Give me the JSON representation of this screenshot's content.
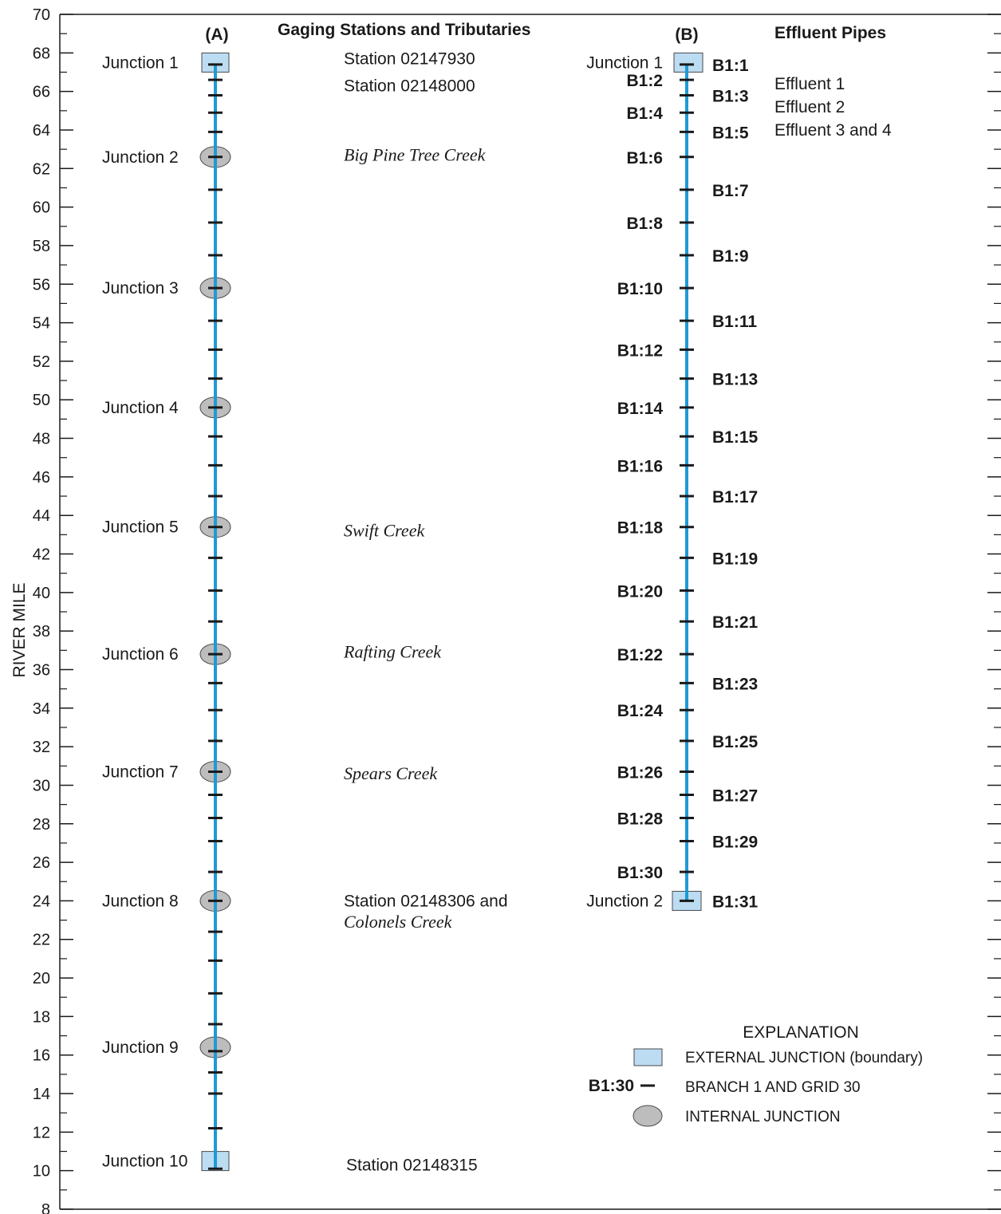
{
  "axis": {
    "ylabel": "RIVER MILE",
    "ylim": [
      8,
      70
    ],
    "ticks": [
      70,
      68,
      66,
      64,
      62,
      60,
      58,
      56,
      54,
      52,
      50,
      48,
      46,
      44,
      42,
      40,
      38,
      36,
      34,
      32,
      30,
      28,
      26,
      24,
      22,
      20,
      18,
      16,
      14,
      12,
      10,
      8
    ]
  },
  "panel_a": {
    "label": "(A)",
    "header": "Gaging Stations and Tributaries",
    "junctions": [
      {
        "label": "Junction 1",
        "mile": 67.5,
        "type": "external"
      },
      {
        "label": "Junction 2",
        "mile": 62.6,
        "type": "internal"
      },
      {
        "label": "Junction 3",
        "mile": 55.8,
        "type": "internal"
      },
      {
        "label": "Junction 4",
        "mile": 49.6,
        "type": "internal"
      },
      {
        "label": "Junction 5",
        "mile": 43.4,
        "type": "internal"
      },
      {
        "label": "Junction 6",
        "mile": 36.8,
        "type": "internal"
      },
      {
        "label": "Junction 7",
        "mile": 30.7,
        "type": "internal"
      },
      {
        "label": "Junction 8",
        "mile": 24.0,
        "type": "internal"
      },
      {
        "label": "Junction 9",
        "mile": 16.4,
        "type": "internal"
      },
      {
        "label": "Junction 10",
        "mile": 10.5,
        "type": "external"
      }
    ],
    "grid_miles": [
      67.4,
      66.6,
      65.8,
      64.9,
      63.9,
      62.6,
      60.9,
      59.2,
      57.5,
      55.8,
      54.1,
      52.6,
      51.1,
      49.6,
      48.1,
      46.6,
      45.0,
      43.4,
      41.8,
      40.1,
      38.5,
      36.8,
      35.3,
      33.9,
      32.3,
      30.7,
      29.5,
      28.3,
      27.1,
      25.5,
      24.0,
      22.4,
      20.9,
      19.2,
      17.6,
      16.2,
      15.1,
      14.0,
      12.2,
      10.1
    ],
    "annotations": [
      {
        "text": "Station 02147930",
        "mile": 67.7,
        "italic": false
      },
      {
        "text": "Station 02148000",
        "mile": 66.3,
        "italic": false
      },
      {
        "text": "Big Pine Tree Creek",
        "mile": 62.7,
        "italic": true
      },
      {
        "text": "Swift Creek",
        "mile": 43.2,
        "italic": true
      },
      {
        "text": "Rafting Creek",
        "mile": 36.9,
        "italic": true
      },
      {
        "text": "Spears Creek",
        "mile": 30.6,
        "italic": true
      },
      {
        "text": "Station 02148306 and",
        "mile": 24.0,
        "italic": false
      },
      {
        "text": "Colonels Creek",
        "mile": 22.9,
        "italic": true
      },
      {
        "text": "Station 02148315",
        "mile": 10.3,
        "italic": false
      }
    ]
  },
  "panel_b": {
    "label": "(B)",
    "header": "Effluent Pipes",
    "junctions": [
      {
        "label": "Junction 1",
        "mile": 67.5,
        "type": "external"
      },
      {
        "label": "Junction 2",
        "mile": 24.0,
        "type": "external"
      }
    ],
    "grids": [
      {
        "label": "B1:1",
        "mile": 67.4,
        "side": "right"
      },
      {
        "label": "B1:2",
        "mile": 66.6,
        "side": "left"
      },
      {
        "label": "B1:3",
        "mile": 65.8,
        "side": "right"
      },
      {
        "label": "B1:4",
        "mile": 64.9,
        "side": "left"
      },
      {
        "label": "B1:5",
        "mile": 63.9,
        "side": "right"
      },
      {
        "label": "B1:6",
        "mile": 62.6,
        "side": "left"
      },
      {
        "label": "B1:7",
        "mile": 60.9,
        "side": "right"
      },
      {
        "label": "B1:8",
        "mile": 59.2,
        "side": "left"
      },
      {
        "label": "B1:9",
        "mile": 57.5,
        "side": "right"
      },
      {
        "label": "B1:10",
        "mile": 55.8,
        "side": "left"
      },
      {
        "label": "B1:11",
        "mile": 54.1,
        "side": "right"
      },
      {
        "label": "B1:12",
        "mile": 52.6,
        "side": "left"
      },
      {
        "label": "B1:13",
        "mile": 51.1,
        "side": "right"
      },
      {
        "label": "B1:14",
        "mile": 49.6,
        "side": "left"
      },
      {
        "label": "B1:15",
        "mile": 48.1,
        "side": "right"
      },
      {
        "label": "B1:16",
        "mile": 46.6,
        "side": "left"
      },
      {
        "label": "B1:17",
        "mile": 45.0,
        "side": "right"
      },
      {
        "label": "B1:18",
        "mile": 43.4,
        "side": "left"
      },
      {
        "label": "B1:19",
        "mile": 41.8,
        "side": "right"
      },
      {
        "label": "B1:20",
        "mile": 40.1,
        "side": "left"
      },
      {
        "label": "B1:21",
        "mile": 38.5,
        "side": "right"
      },
      {
        "label": "B1:22",
        "mile": 36.8,
        "side": "left"
      },
      {
        "label": "B1:23",
        "mile": 35.3,
        "side": "right"
      },
      {
        "label": "B1:24",
        "mile": 33.9,
        "side": "left"
      },
      {
        "label": "B1:25",
        "mile": 32.3,
        "side": "right"
      },
      {
        "label": "B1:26",
        "mile": 30.7,
        "side": "left"
      },
      {
        "label": "B1:27",
        "mile": 29.5,
        "side": "right"
      },
      {
        "label": "B1:28",
        "mile": 28.3,
        "side": "left"
      },
      {
        "label": "B1:29",
        "mile": 27.1,
        "side": "right"
      },
      {
        "label": "B1:30",
        "mile": 25.5,
        "side": "left"
      },
      {
        "label": "B1:31",
        "mile": 24.0,
        "side": "right"
      }
    ],
    "effluents": [
      {
        "text": "Effluent 1",
        "mile": 66.4
      },
      {
        "text": "Effluent 2",
        "mile": 65.2
      },
      {
        "text": "Effluent 3 and 4",
        "mile": 64.0
      }
    ]
  },
  "legend": {
    "title": "EXPLANATION",
    "external": "EXTERNAL JUNCTION (boundary)",
    "grid_sample": "B1:30",
    "grid": "BRANCH 1 AND GRID 30",
    "internal": "INTERNAL JUNCTION"
  },
  "colors": {
    "river": "#1e9ad6",
    "external_fill": "#bcdcf2",
    "internal_fill": "#bdbdbd",
    "ink": "#1a1a1a"
  }
}
